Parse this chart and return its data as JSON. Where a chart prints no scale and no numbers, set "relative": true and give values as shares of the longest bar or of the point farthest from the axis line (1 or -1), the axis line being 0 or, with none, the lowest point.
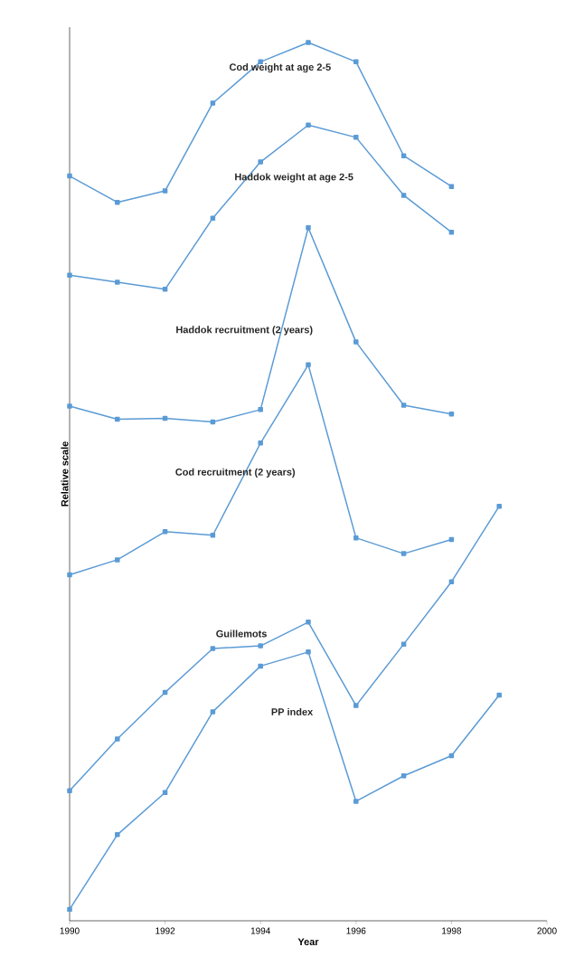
{
  "chart_data": {
    "type": "line",
    "relative": true,
    "xlabel": "Year",
    "ylabel": "Relative scale",
    "x": [
      1990,
      1991,
      1992,
      1993,
      1994,
      1995,
      1996,
      1997,
      1998,
      1999
    ],
    "xlim": [
      1990,
      2000
    ],
    "xticks": [
      1990,
      1992,
      1994,
      1996,
      1998,
      2000
    ],
    "marker": "square",
    "line_style": "solid",
    "grid": false,
    "series": [
      {
        "name": "Cod weight at age 2-5",
        "color": "#5b9bd5",
        "values": [
          0.848,
          0.818,
          0.831,
          0.931,
          0.978,
          1,
          0.978,
          0.871,
          0.836,
          null
        ]
      },
      {
        "name": "Haddok weight at age 2-5",
        "color": "#5b9bd5",
        "values": [
          0.735,
          0.727,
          0.719,
          0.8,
          0.864,
          0.906,
          0.892,
          0.826,
          0.784,
          null
        ]
      },
      {
        "name": "Haddok recruitment (2 years)",
        "color": "#5b9bd5",
        "values": [
          0.586,
          0.571,
          0.572,
          0.568,
          0.582,
          0.789,
          0.659,
          0.587,
          0.577,
          null
        ]
      },
      {
        "name": "Cod recruitment (2 years)",
        "color": "#5b9bd5",
        "values": [
          0.394,
          0.411,
          0.443,
          0.439,
          0.544,
          0.633,
          0.436,
          0.418,
          0.434,
          null
        ]
      },
      {
        "name": "Guillemots",
        "color": "#5b9bd5",
        "values": [
          0.148,
          0.207,
          0.26,
          0.31,
          0.313,
          0.34,
          0.245,
          0.315,
          0.386,
          0.472
        ]
      },
      {
        "name": "PP index",
        "color": "#5b9bd5",
        "values": [
          0.013,
          0.098,
          0.146,
          0.238,
          0.29,
          0.306,
          0.136,
          0.165,
          0.188,
          0.257
        ]
      }
    ]
  }
}
